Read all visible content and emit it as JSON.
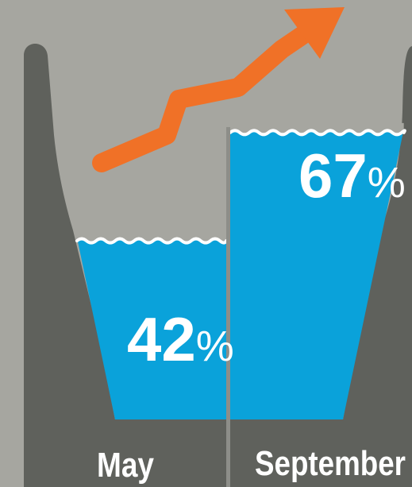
{
  "chart_data": {
    "type": "bar",
    "categories": [
      "May",
      "September"
    ],
    "values": [
      42,
      67
    ],
    "value_suffix": "%",
    "ylim": [
      0,
      100
    ],
    "trend_arrow": "up",
    "grid": false,
    "legend": "none"
  },
  "colors": {
    "background": "#a6a6a0",
    "reservoir_walls": "#5f615c",
    "water": "#0aa2da",
    "wave": "#ffffff",
    "arrow": "#f07127",
    "divider": "#8d8e89",
    "text": "#ffffff"
  },
  "icons": {
    "trend": "upward-trend-arrow-icon"
  }
}
